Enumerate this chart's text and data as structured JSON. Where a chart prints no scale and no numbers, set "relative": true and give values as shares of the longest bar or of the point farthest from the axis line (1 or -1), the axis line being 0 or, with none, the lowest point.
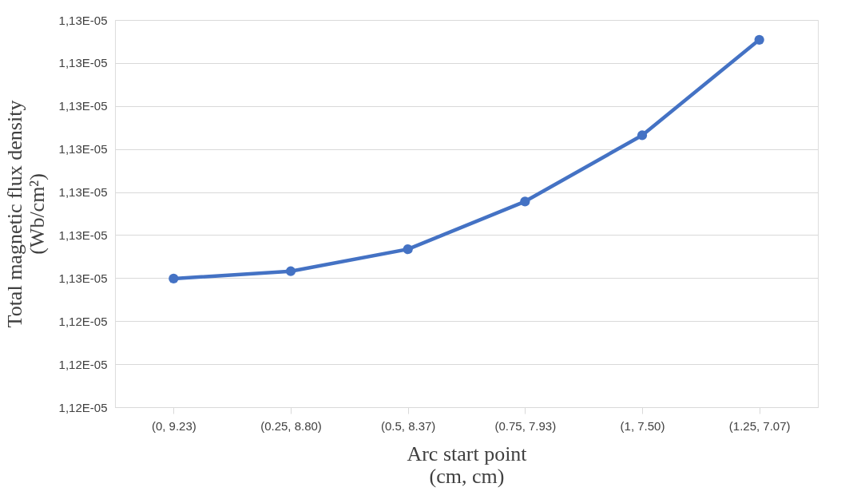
{
  "chart_data": {
    "type": "line",
    "xlabel": "Arc start point\n(cm, cm)",
    "ylabel": "Total magnetic flux density\n(Wb/cm²)",
    "categories": [
      "(0, 9.23)",
      "(0.25, 8.80)",
      "(0.5, 8.37)",
      "(0.75, 7.93)",
      "(1, 7.50)",
      "(1.25, 7.07)"
    ],
    "relative": true,
    "series": [
      {
        "color": "#4472c4",
        "values": [
          0.35,
          0.37,
          0.43,
          0.56,
          0.74,
          1
        ]
      }
    ],
    "annotations": [
      "1,12E-05",
      "1,12E-05",
      "1,12E-05",
      "1,13E-05",
      "1,13E-05",
      "1,13E-05",
      "1,13E-05",
      "1,13E-05",
      "1,13E-05",
      "1,13E-05"
    ],
    "grid": "y",
    "marker": "circle",
    "line_style": "solid"
  }
}
